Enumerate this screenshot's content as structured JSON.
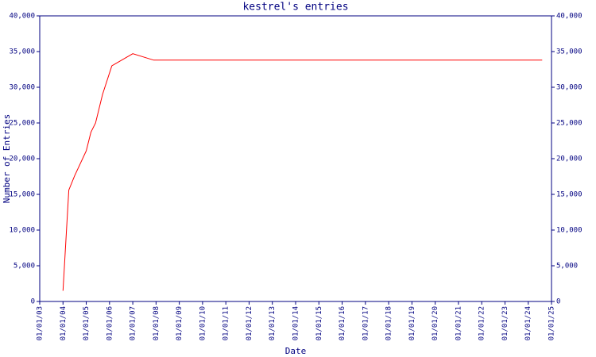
{
  "chart_data": {
    "type": "line",
    "title": "kestrel's entries",
    "x_label": "Date",
    "y_label": "Number of Entries",
    "x": [
      2004.0,
      2004.25,
      2004.5,
      2005.0,
      2005.2,
      2005.4,
      2005.7,
      2006.1,
      2007.0,
      2007.9,
      2024.6
    ],
    "series": [
      {
        "name": "entries",
        "color": "#ff0000",
        "values": [
          1500,
          15600,
          17600,
          21100,
          23700,
          25000,
          29000,
          33000,
          34700,
          33800,
          33800
        ]
      }
    ],
    "xlim": [
      2003,
      2025
    ],
    "xticks": [
      {
        "value": 2003,
        "label": "01/01/03"
      },
      {
        "value": 2004,
        "label": "01/01/04"
      },
      {
        "value": 2005,
        "label": "01/01/05"
      },
      {
        "value": 2006,
        "label": "01/01/06"
      },
      {
        "value": 2007,
        "label": "01/01/07"
      },
      {
        "value": 2008,
        "label": "01/01/08"
      },
      {
        "value": 2009,
        "label": "01/01/09"
      },
      {
        "value": 2010,
        "label": "01/01/10"
      },
      {
        "value": 2011,
        "label": "01/01/11"
      },
      {
        "value": 2012,
        "label": "01/01/12"
      },
      {
        "value": 2013,
        "label": "01/01/13"
      },
      {
        "value": 2014,
        "label": "01/01/14"
      },
      {
        "value": 2015,
        "label": "01/01/15"
      },
      {
        "value": 2016,
        "label": "01/01/16"
      },
      {
        "value": 2017,
        "label": "01/01/17"
      },
      {
        "value": 2018,
        "label": "01/01/18"
      },
      {
        "value": 2019,
        "label": "01/01/19"
      },
      {
        "value": 2020,
        "label": "01/01/20"
      },
      {
        "value": 2021,
        "label": "01/01/21"
      },
      {
        "value": 2022,
        "label": "01/01/22"
      },
      {
        "value": 2023,
        "label": "01/01/23"
      },
      {
        "value": 2024,
        "label": "01/01/24"
      },
      {
        "value": 2025,
        "label": "01/01/25"
      }
    ],
    "ylim": [
      0,
      40000
    ],
    "yticks": [
      0,
      {
        "value": 5000,
        "label": "5,000"
      },
      {
        "value": 10000,
        "label": "10,000"
      },
      {
        "value": 15000,
        "label": "15,000"
      },
      {
        "value": 20000,
        "label": "20,000"
      },
      {
        "value": 25000,
        "label": "25,000"
      },
      {
        "value": 30000,
        "label": "30,000"
      },
      {
        "value": 35000,
        "label": "35,000"
      },
      {
        "value": 40000,
        "label": "40,000"
      }
    ],
    "y2lim": [
      0,
      40000
    ],
    "y2ticks": [
      0,
      {
        "value": 5000,
        "label": "5,000"
      },
      {
        "value": 10000,
        "label": "10,000"
      },
      {
        "value": 15000,
        "label": "15,000"
      },
      {
        "value": 20000,
        "label": "20,000"
      },
      {
        "value": 25000,
        "label": "25,000"
      },
      {
        "value": 30000,
        "label": "30,000"
      },
      {
        "value": 35000,
        "label": "35,000"
      },
      {
        "value": 40000,
        "label": "40,000"
      }
    ]
  }
}
